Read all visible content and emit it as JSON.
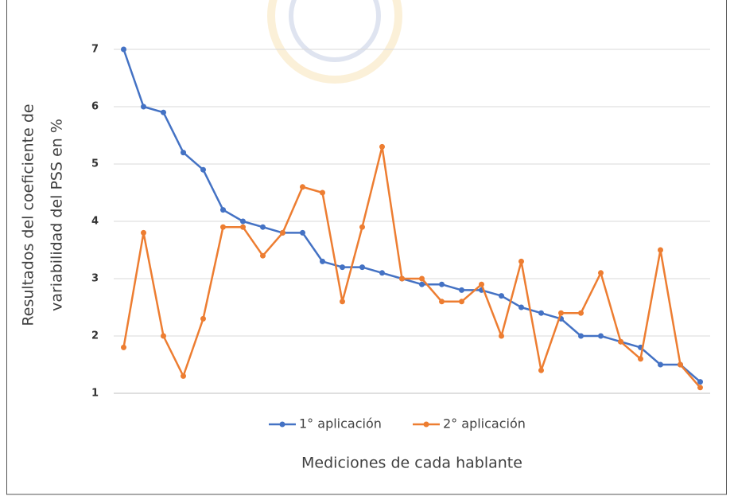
{
  "chart_data": {
    "type": "line",
    "y_label_lines": [
      "Resultados del coeficiente de",
      "variabilidad del PSS en %"
    ],
    "x_label": "Mediciones de cada hablante",
    "categories": [
      null,
      null,
      null,
      null,
      null,
      null,
      null,
      null,
      null,
      null,
      null,
      null,
      null,
      null,
      null,
      null,
      null,
      null,
      null,
      null,
      null,
      null,
      null,
      null,
      null,
      null,
      null,
      null,
      null,
      null
    ],
    "series": [
      {
        "name": "1° aplicación",
        "color": "#4472c4",
        "values": [
          7,
          6,
          5.9,
          5.2,
          4.9,
          4.2,
          4.0,
          3.9,
          3.8,
          3.8,
          3.3,
          3.2,
          3.2,
          3.1,
          3.0,
          2.9,
          2.9,
          2.8,
          2.8,
          2.7,
          2.5,
          2.4,
          2.3,
          2.0,
          2.0,
          1.9,
          1.8,
          1.5,
          1.5,
          1.2
        ]
      },
      {
        "name": "2° aplicación",
        "color": "#ed7d31",
        "values": [
          1.8,
          3.8,
          2.0,
          1.3,
          2.3,
          3.9,
          3.9,
          3.4,
          3.8,
          4.6,
          4.5,
          2.6,
          3.9,
          5.3,
          3.0,
          3.0,
          2.6,
          2.6,
          2.9,
          2.0,
          3.3,
          1.4,
          2.4,
          2.4,
          3.1,
          1.9,
          1.6,
          3.5,
          1.5,
          1.1
        ]
      }
    ],
    "ylim": [
      1,
      7
    ],
    "yticks": [
      1,
      2,
      3,
      4,
      5,
      6,
      7
    ],
    "grid": true,
    "legend": "bottom"
  }
}
